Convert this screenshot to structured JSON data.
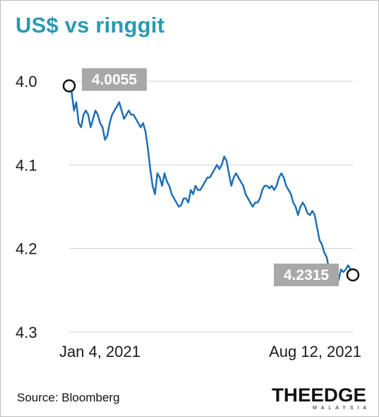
{
  "title": "US$ vs ringgit",
  "source": "Source: Bloomberg",
  "logo": {
    "main": "THEEDGE",
    "sub": "MALAYSIA"
  },
  "colors": {
    "title": "#2a9ab0",
    "line": "#1f6fb5",
    "callout": "#a8a8a8",
    "grid": "#d0d0d0"
  },
  "chart_data": {
    "type": "line",
    "title": "US$ vs ringgit",
    "xlabel": "",
    "ylabel": "",
    "y_inverted": true,
    "ylim": [
      4.0,
      4.3
    ],
    "yticks": [
      4.0,
      4.1,
      4.2,
      4.3
    ],
    "ytick_labels": [
      "4.0",
      "4.1",
      "4.2",
      "4.3"
    ],
    "x_tick_labels": [
      "Jan 4, 2021",
      "Aug 12, 2021"
    ],
    "grid": true,
    "annotations": [
      {
        "label": "4.0055",
        "value": 4.0055,
        "at": "start"
      },
      {
        "label": "4.2315",
        "value": 4.2315,
        "at": "end"
      }
    ],
    "series": [
      {
        "values": [
          4.0055,
          4.012,
          4.035,
          4.025,
          4.05,
          4.055,
          4.04,
          4.035,
          4.04,
          4.055,
          4.045,
          4.035,
          4.04,
          4.05,
          4.055,
          4.07,
          4.065,
          4.05,
          4.04,
          4.035,
          4.03,
          4.025,
          4.035,
          4.045,
          4.04,
          4.035,
          4.04,
          4.04,
          4.045,
          4.05,
          4.055,
          4.05,
          4.06,
          4.08,
          4.105,
          4.125,
          4.135,
          4.11,
          4.115,
          4.125,
          4.11,
          4.12,
          4.125,
          4.135,
          4.14,
          4.145,
          4.15,
          4.148,
          4.14,
          4.14,
          4.145,
          4.13,
          4.135,
          4.125,
          4.13,
          4.13,
          4.125,
          4.12,
          4.115,
          4.115,
          4.11,
          4.105,
          4.1,
          4.105,
          4.1,
          4.09,
          4.095,
          4.11,
          4.125,
          4.115,
          4.11,
          4.115,
          4.12,
          4.125,
          4.135,
          4.14,
          4.145,
          4.15,
          4.145,
          4.145,
          4.14,
          4.13,
          4.125,
          4.125,
          4.128,
          4.125,
          4.13,
          4.125,
          4.115,
          4.11,
          4.115,
          4.125,
          4.13,
          4.135,
          4.145,
          4.15,
          4.16,
          4.15,
          4.145,
          4.15,
          4.158,
          4.16,
          4.155,
          4.16,
          4.175,
          4.19,
          4.195,
          4.205,
          4.21,
          4.225,
          4.235,
          4.232,
          4.235,
          4.238,
          4.225,
          4.228,
          4.225,
          4.22,
          4.225,
          4.2315
        ]
      }
    ]
  }
}
